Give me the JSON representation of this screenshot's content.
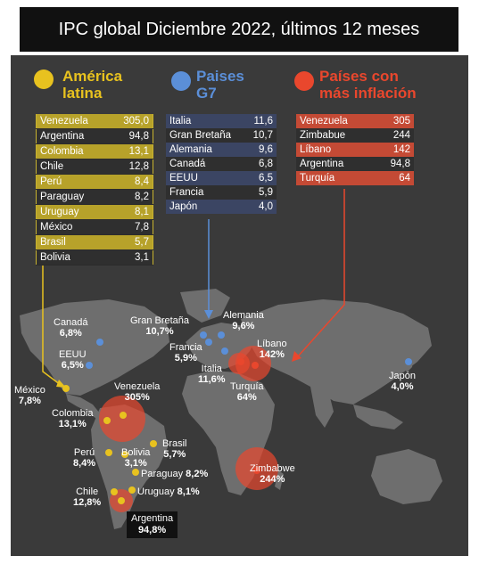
{
  "title": "IPC global Diciembre 2022, últimos 12 meses",
  "colors": {
    "latam": "#e8c21f",
    "g7": "#5b8fd8",
    "inflation": "#e9472d",
    "land": "#6e6e6e",
    "background": "#3a3a3a"
  },
  "latam": {
    "heading_1": "América",
    "heading_2": "latina",
    "rows": [
      {
        "country": "Venezuela",
        "value": "305,0"
      },
      {
        "country": "Argentina",
        "value": "94,8"
      },
      {
        "country": "Colombia",
        "value": "13,1"
      },
      {
        "country": "Chile",
        "value": "12,8"
      },
      {
        "country": "Perú",
        "value": "8,4"
      },
      {
        "country": "Paraguay",
        "value": "8,2"
      },
      {
        "country": "Uruguay",
        "value": "8,1"
      },
      {
        "country": "México",
        "value": "7,8"
      },
      {
        "country": "Brasil",
        "value": "5,7"
      },
      {
        "country": "Bolivia",
        "value": "3,1"
      }
    ]
  },
  "g7": {
    "heading_1": "Paises",
    "heading_2": "G7",
    "rows": [
      {
        "country": "Italia",
        "value": "11,6"
      },
      {
        "country": "Gran Bretaña",
        "value": "10,7"
      },
      {
        "country": "Alemania",
        "value": "9,6"
      },
      {
        "country": "Canadá",
        "value": "6,8"
      },
      {
        "country": "EEUU",
        "value": "6,5"
      },
      {
        "country": "Francia",
        "value": "5,9"
      },
      {
        "country": "Japón",
        "value": "4,0"
      }
    ]
  },
  "inflation": {
    "heading_1": "Países con",
    "heading_2": "más inflación",
    "rows": [
      {
        "country": "Venezuela",
        "value": "305"
      },
      {
        "country": "Zimbabue",
        "value": "244"
      },
      {
        "country": "Líbano",
        "value": "142"
      },
      {
        "country": "Argentina",
        "value": "94,8"
      },
      {
        "country": "Turquía",
        "value": "64"
      }
    ]
  },
  "map_labels": {
    "canada": {
      "name": "Canadá",
      "value": "6,8%"
    },
    "eeuu": {
      "name": "EEUU",
      "value": "6,5%"
    },
    "mexico": {
      "name": "México",
      "value": "7,8%"
    },
    "colombia": {
      "name": "Colombia",
      "value": "13,1%"
    },
    "venezuela": {
      "name": "Venezuela",
      "value": "305%"
    },
    "peru": {
      "name": "Perú",
      "value": "8,4%"
    },
    "bolivia": {
      "name": "Bolivia",
      "value": "3,1%"
    },
    "brasil": {
      "name": "Brasil",
      "value": "5,7%"
    },
    "paraguay": {
      "name": "Paraguay",
      "value": "8,2%"
    },
    "chile": {
      "name": "Chile",
      "value": "12,8%"
    },
    "uruguay": {
      "name": "Uruguay",
      "value": "8,1%"
    },
    "argentina": {
      "name": "Argentina",
      "value": "94,8%"
    },
    "granbretana": {
      "name": "Gran Bretaña",
      "value": "10,7%"
    },
    "alemania": {
      "name": "Alemania",
      "value": "9,6%"
    },
    "francia": {
      "name": "Francia",
      "value": "5,9%"
    },
    "italia": {
      "name": "Italia",
      "value": "11,6%"
    },
    "libano": {
      "name": "Líbano",
      "value": "142%"
    },
    "turquia": {
      "name": "Turquía",
      "value": "64%"
    },
    "zimbabwe": {
      "name": "Zimbabwe",
      "value": "244%"
    },
    "japon": {
      "name": "Japón",
      "value": "4,0%"
    }
  }
}
